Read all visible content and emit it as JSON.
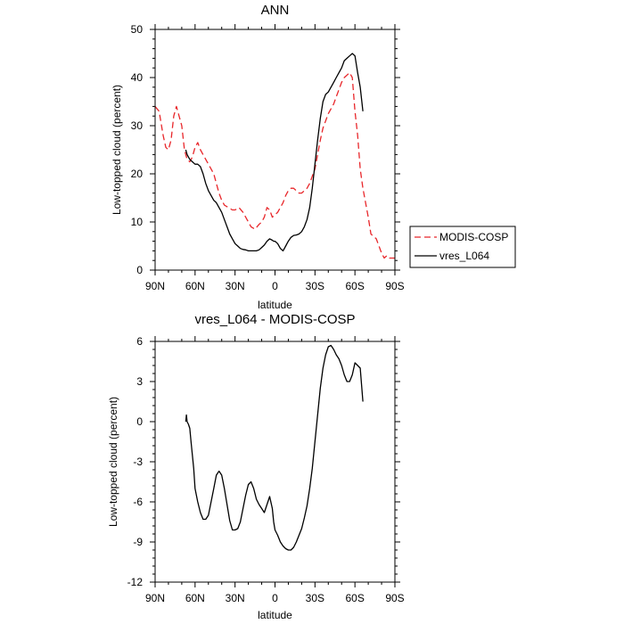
{
  "chart_data": [
    {
      "type": "line",
      "title": "ANN",
      "xlabel": "latitude",
      "ylabel": "Low-topped cloud (percent)",
      "xlim": [
        90,
        -90
      ],
      "ylim": [
        0,
        50
      ],
      "x_ticks": [
        90,
        60,
        30,
        0,
        -30,
        -60,
        -90
      ],
      "x_tick_labels": [
        "90N",
        "60N",
        "30N",
        "0",
        "30S",
        "60S",
        "90S"
      ],
      "y_ticks": [
        0,
        10,
        20,
        30,
        40,
        50
      ],
      "y_tick_labels": [
        "0",
        "10",
        "20",
        "30",
        "40",
        "50"
      ],
      "legend_position": "right",
      "grid": false,
      "series": [
        {
          "name": "MODIS-COSP",
          "color": "#e8262a",
          "dash": "dashed",
          "x": [
            90,
            87,
            84,
            82,
            80,
            78,
            76,
            74,
            72,
            70,
            68,
            66,
            64,
            62,
            60,
            58,
            56,
            54,
            52,
            50,
            48,
            46,
            44,
            42,
            40,
            38,
            35,
            32,
            30,
            27,
            24,
            21,
            18,
            15,
            12,
            10,
            8,
            6,
            4,
            2,
            0,
            -2,
            -4,
            -6,
            -8,
            -10,
            -12,
            -14,
            -16,
            -18,
            -20,
            -22,
            -24,
            -26,
            -28,
            -30,
            -32,
            -34,
            -36,
            -38,
            -40,
            -42,
            -44,
            -46,
            -48,
            -50,
            -52,
            -54,
            -56,
            -58,
            -60,
            -62,
            -64,
            -66,
            -68,
            -70,
            -72,
            -74,
            -76,
            -78,
            -80,
            -82,
            -84,
            -86,
            -88,
            -90
          ],
          "y": [
            34,
            33,
            28,
            25.5,
            25,
            27,
            32,
            34,
            32,
            30,
            25,
            23,
            22.5,
            23.5,
            25.5,
            26.5,
            25,
            24,
            23,
            22,
            21,
            20,
            18,
            16,
            14.5,
            13.5,
            13,
            12.5,
            12.5,
            13,
            12,
            10.5,
            9,
            8.5,
            9.5,
            10,
            11,
            13,
            12.5,
            11,
            11.5,
            12,
            13,
            14,
            15.5,
            16.5,
            17,
            17,
            16.5,
            16,
            16,
            16.5,
            17,
            18,
            19.5,
            21,
            24,
            27,
            29.5,
            31,
            32.5,
            33.5,
            34.5,
            36,
            37.5,
            39,
            40,
            40.5,
            41,
            40,
            33,
            28,
            21,
            17,
            14,
            11,
            7.5,
            7,
            6.5,
            5,
            3.5,
            2.5,
            3,
            2.5,
            2.5,
            2.5
          ]
        },
        {
          "name": "vres_L064",
          "color": "#000000",
          "dash": "solid",
          "x": [
            67,
            66,
            64,
            62,
            60,
            58,
            56,
            54,
            52,
            50,
            48,
            46,
            44,
            42,
            40,
            38,
            36,
            34,
            32,
            30,
            28,
            26,
            24,
            22,
            20,
            18,
            16,
            14,
            12,
            10,
            8,
            6,
            4,
            2,
            1,
            0,
            -2,
            -4,
            -6,
            -8,
            -10,
            -12,
            -14,
            -16,
            -18,
            -20,
            -22,
            -24,
            -26,
            -28,
            -30,
            -32,
            -34,
            -36,
            -38,
            -40,
            -42,
            -44,
            -46,
            -48,
            -50,
            -52,
            -54,
            -56,
            -58,
            -60,
            -62,
            -64,
            -66
          ],
          "y": [
            25,
            24,
            23,
            22.5,
            22,
            22,
            21.5,
            20,
            18,
            16.5,
            15.5,
            14.5,
            14,
            13,
            12,
            10.5,
            9,
            7.5,
            6.5,
            5.5,
            5,
            4.5,
            4.3,
            4.2,
            4,
            4,
            4,
            4,
            4.2,
            4.7,
            5.2,
            6,
            6.5,
            6.2,
            6,
            6,
            5.5,
            4.5,
            4,
            5,
            6,
            6.8,
            7.2,
            7.3,
            7.5,
            8,
            9,
            10.5,
            13,
            17,
            22,
            27,
            31.5,
            35,
            36.5,
            37,
            38,
            39,
            40,
            41,
            42,
            43.5,
            44,
            44.5,
            45,
            44.5,
            41,
            38,
            33
          ]
        }
      ]
    },
    {
      "type": "line",
      "title": "vres_L064 - MODIS-COSP",
      "xlabel": "latitude",
      "ylabel": "Low-topped cloud (percent)",
      "xlim": [
        90,
        -90
      ],
      "ylim": [
        -12,
        6
      ],
      "x_ticks": [
        90,
        60,
        30,
        0,
        -30,
        -60,
        -90
      ],
      "x_tick_labels": [
        "90N",
        "60N",
        "30N",
        "0",
        "30S",
        "60S",
        "90S"
      ],
      "y_ticks": [
        -12,
        -9,
        -6,
        -3,
        0,
        3,
        6
      ],
      "y_tick_labels": [
        "-12",
        "-9",
        "-6",
        "-3",
        "0",
        "3",
        "6"
      ],
      "grid": false,
      "series": [
        {
          "color": "#000000",
          "dash": "solid",
          "x": [
            67,
            66.5,
            66,
            65,
            64,
            63,
            62,
            61,
            60,
            58,
            56,
            54,
            52,
            50,
            48,
            46,
            44,
            42,
            40,
            38,
            36,
            34,
            32,
            30,
            28,
            26,
            24,
            22,
            20,
            18,
            16,
            14,
            12,
            10,
            8,
            6,
            4,
            2,
            1,
            0,
            -2,
            -4,
            -6,
            -8,
            -10,
            -12,
            -14,
            -16,
            -18,
            -20,
            -22,
            -24,
            -26,
            -28,
            -30,
            -32,
            -34,
            -36,
            -38,
            -40,
            -42,
            -44,
            -46,
            -48,
            -50,
            -52,
            -54,
            -56,
            -58,
            -60,
            -62,
            -64,
            -66
          ],
          "y": [
            0,
            0.5,
            0,
            -0.2,
            -0.5,
            -1.5,
            -2.5,
            -3.5,
            -5,
            -6,
            -6.8,
            -7.3,
            -7.3,
            -7,
            -6,
            -5,
            -4,
            -3.7,
            -4,
            -5,
            -6.2,
            -7.4,
            -8.1,
            -8.1,
            -8,
            -7.5,
            -6.5,
            -5.5,
            -4.7,
            -4.5,
            -5,
            -5.8,
            -6.2,
            -6.5,
            -6.8,
            -6.2,
            -5.6,
            -6.5,
            -7.5,
            -8.1,
            -8.5,
            -9,
            -9.3,
            -9.5,
            -9.6,
            -9.6,
            -9.4,
            -9,
            -8.5,
            -8,
            -7.2,
            -6.3,
            -5,
            -3.5,
            -1.5,
            0.5,
            2.5,
            4,
            5,
            5.6,
            5.7,
            5.4,
            5,
            4.7,
            4.2,
            3.5,
            3,
            3,
            3.5,
            4.4,
            4.2,
            4,
            1.5
          ]
        }
      ]
    }
  ]
}
